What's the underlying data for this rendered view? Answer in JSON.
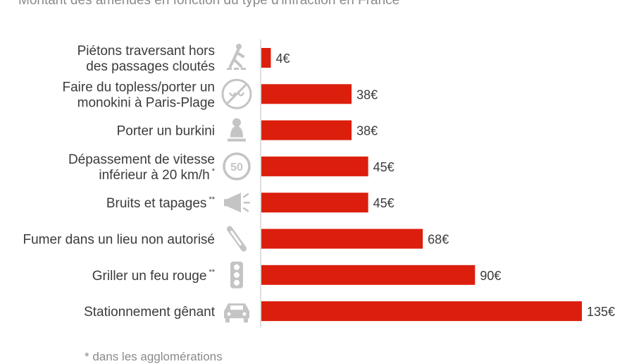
{
  "subtitle": "Montant des amendes en fonction du type d'infraction en France",
  "footnote": "* dans les agglomérations",
  "colors": {
    "bar": "#dc1e0d",
    "icon": "#c4c4c4",
    "axis": "#c8c8c8"
  },
  "chart_data": {
    "type": "bar",
    "orientation": "horizontal",
    "title": "",
    "subtitle": "Montant des amendes en fonction du type d'infraction en France",
    "xlabel": "",
    "ylabel": "",
    "unit": "€",
    "xlim": [
      0,
      135
    ],
    "grid": false,
    "categories": [
      {
        "lines": [
          "Piétons traversant hors",
          "des passages cloutés"
        ],
        "sup": "",
        "icon": "pedestrian-icon"
      },
      {
        "lines": [
          "Faire du topless/porter un",
          "monokini à Paris-Plage"
        ],
        "sup": "",
        "icon": "no-topless-icon"
      },
      {
        "lines": [
          "Porter un burkini"
        ],
        "sup": "",
        "icon": "burkini-icon"
      },
      {
        "lines": [
          "Dépassement de vitesse",
          "inférieur à 20 km/h"
        ],
        "sup": "*",
        "icon": "speed-limit-50-icon"
      },
      {
        "lines": [
          "Bruits et tapages"
        ],
        "sup": "**",
        "icon": "megaphone-icon"
      },
      {
        "lines": [
          "Fumer dans un lieu non autorisé"
        ],
        "sup": "",
        "icon": "cigarette-icon"
      },
      {
        "lines": [
          "Griller un feu rouge"
        ],
        "sup": "**",
        "icon": "traffic-light-icon"
      },
      {
        "lines": [
          "Stationnement gênant"
        ],
        "sup": "",
        "icon": "car-icon"
      }
    ],
    "values": [
      4,
      38,
      38,
      45,
      45,
      68,
      90,
      135
    ],
    "value_labels": [
      "4€",
      "38€",
      "38€",
      "45€",
      "45€",
      "68€",
      "90€",
      "135€"
    ]
  }
}
